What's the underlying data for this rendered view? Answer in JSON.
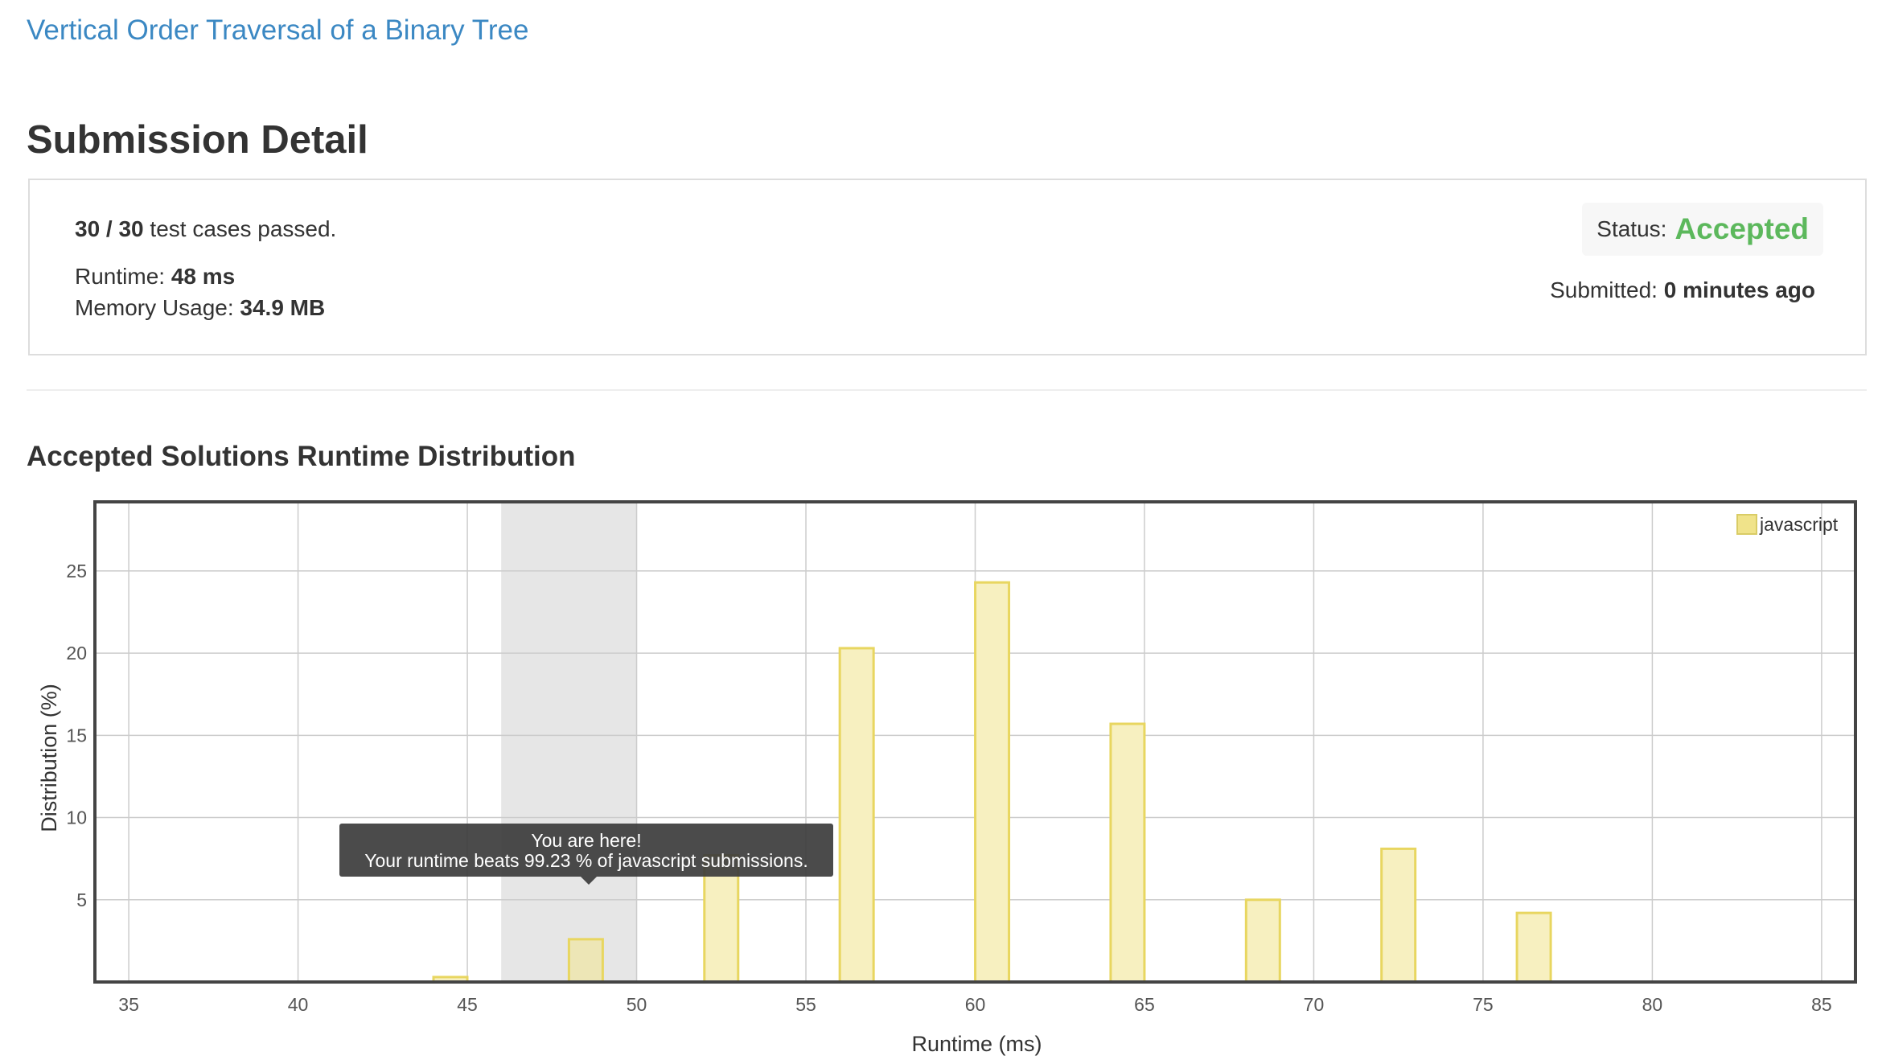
{
  "problem": {
    "title": "Vertical Order Traversal of a Binary Tree"
  },
  "page": {
    "title": "Submission Detail"
  },
  "detail": {
    "cases_passed_bold": "30 / 30",
    "cases_passed_rest": " test cases passed.",
    "runtime_label": "Runtime: ",
    "runtime_value": "48 ms",
    "memory_label": "Memory Usage: ",
    "memory_value": "34.9 MB",
    "status_label": "Status:",
    "status_value": "Accepted",
    "submitted_label": "Submitted: ",
    "submitted_value": "0 minutes ago"
  },
  "distribution": {
    "title": "Accepted Solutions Runtime Distribution"
  },
  "tooltip": {
    "line1": "You are here!",
    "line2": "Your runtime beats 99.23 % of javascript submissions."
  },
  "colors": {
    "bar_fill": "#f7f0c0",
    "bar_stroke": "#e8d660",
    "highlight_bar_fill": "#ede6b6",
    "highlight_band": "#e6e6e6",
    "status_accepted": "#5cb85c",
    "link": "#3b88c3"
  },
  "chart_data": {
    "type": "bar",
    "xlabel": "Runtime (ms)",
    "ylabel": "Distribution (%)",
    "xlim": [
      34,
      86
    ],
    "ylim": [
      0,
      29.2
    ],
    "xticks": [
      35,
      40,
      45,
      50,
      55,
      60,
      65,
      70,
      75,
      80,
      85
    ],
    "yticks": [
      5,
      10,
      15,
      20,
      25
    ],
    "grid": true,
    "legend": {
      "placement": "top-right",
      "entries": [
        "javascript"
      ]
    },
    "highlight_range": [
      46,
      50
    ],
    "highlight_x": 48.5,
    "series": [
      {
        "name": "javascript",
        "x": [
          44.5,
          48.5,
          52.5,
          56.5,
          60.5,
          64.5,
          68.5,
          72.5,
          76.5
        ],
        "values": [
          0.3,
          2.6,
          7.7,
          20.3,
          24.3,
          15.7,
          5.0,
          8.1,
          4.2
        ]
      }
    ]
  }
}
